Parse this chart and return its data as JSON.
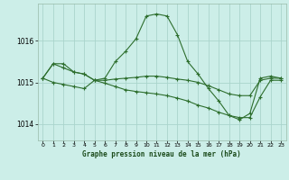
{
  "title": "Graphe pression niveau de la mer (hPa)",
  "bg_color": "#cceee8",
  "grid_color": "#aad4cc",
  "line_color": "#2d6e2d",
  "ylim": [
    1013.6,
    1016.9
  ],
  "yticks": [
    1014,
    1015,
    1016
  ],
  "xticks": [
    0,
    1,
    2,
    3,
    4,
    5,
    6,
    7,
    8,
    9,
    10,
    11,
    12,
    13,
    14,
    15,
    16,
    17,
    18,
    19,
    20,
    21,
    22,
    23
  ],
  "series": [
    [
      1015.1,
      1015.45,
      1015.45,
      1015.25,
      1015.2,
      1015.05,
      1015.1,
      1015.5,
      1015.75,
      1016.05,
      1016.6,
      1016.65,
      1016.6,
      1016.15,
      1015.5,
      1015.2,
      1014.85,
      1014.55,
      1014.2,
      1014.1,
      1014.25,
      1015.1,
      1015.15,
      1015.1
    ],
    [
      1015.1,
      1015.45,
      1015.35,
      1015.25,
      1015.2,
      1015.05,
      1015.05,
      1015.08,
      1015.1,
      1015.12,
      1015.15,
      1015.15,
      1015.12,
      1015.08,
      1015.05,
      1015.0,
      1014.92,
      1014.82,
      1014.72,
      1014.68,
      1014.68,
      1015.05,
      1015.1,
      1015.1
    ],
    [
      1015.1,
      1015.0,
      1014.95,
      1014.9,
      1014.85,
      1015.05,
      1014.98,
      1014.9,
      1014.82,
      1014.78,
      1014.75,
      1014.72,
      1014.68,
      1014.62,
      1014.55,
      1014.45,
      1014.38,
      1014.28,
      1014.2,
      1014.15,
      1014.15,
      1014.65,
      1015.05,
      1015.05
    ]
  ]
}
